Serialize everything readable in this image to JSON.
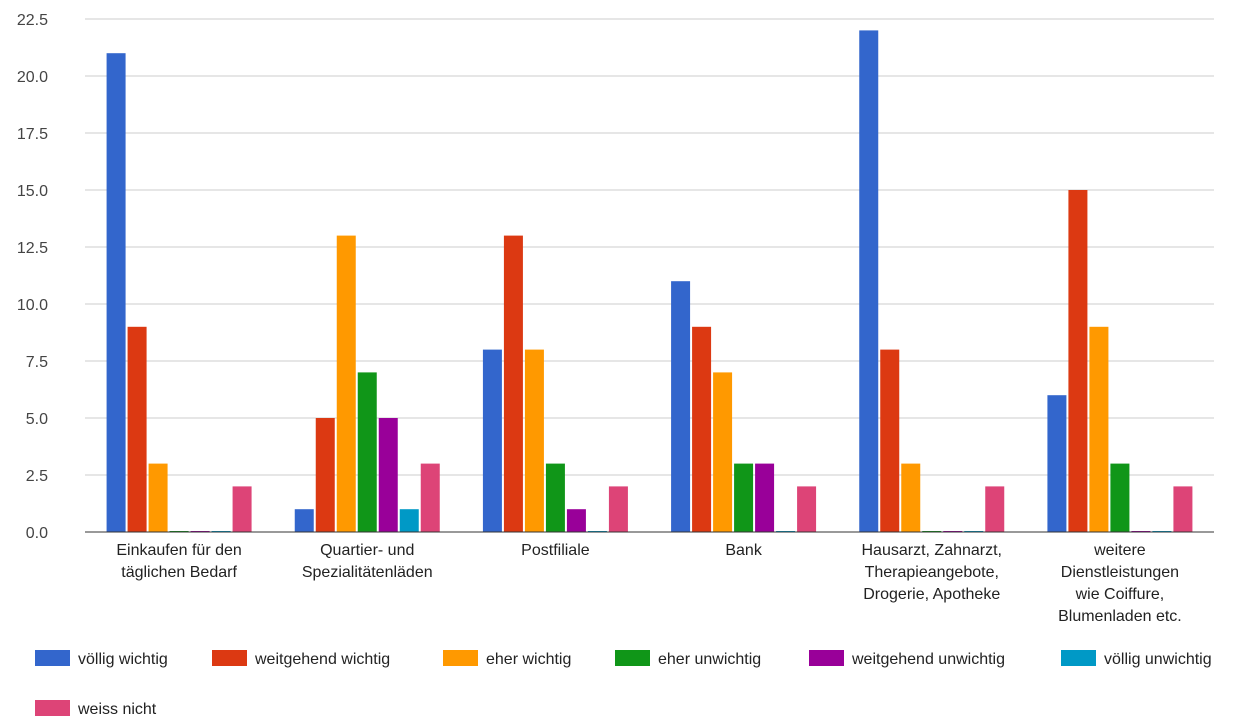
{
  "chart_data": {
    "type": "bar",
    "title": "",
    "xlabel": "",
    "ylabel": "",
    "ylim": [
      0,
      22.5
    ],
    "yticks": [
      "0.0",
      "2.5",
      "5.0",
      "7.5",
      "10.0",
      "12.5",
      "15.0",
      "17.5",
      "20.0",
      "22.5"
    ],
    "grid": true,
    "legend_position": "bottom",
    "categories": [
      [
        "Einkaufen für den",
        "täglichen Bedarf"
      ],
      [
        "Quartier- und",
        "Spezialitätenläden"
      ],
      [
        "Postfiliale"
      ],
      [
        "Bank"
      ],
      [
        "Hausarzt, Zahnarzt,",
        "Therapieangebote,",
        "Drogerie, Apotheke"
      ],
      [
        "weitere",
        "Dienstleistungen",
        "wie Coiffure,",
        "Blumenladen etc."
      ]
    ],
    "series": [
      {
        "name": "völlig wichtig",
        "color": "#3366cc",
        "values": [
          21,
          1,
          8,
          11,
          22,
          6
        ]
      },
      {
        "name": "weitgehend wichtig",
        "color": "#dc3912",
        "values": [
          9,
          5,
          13,
          9,
          8,
          15
        ]
      },
      {
        "name": "eher wichtig",
        "color": "#ff9900",
        "values": [
          3,
          13,
          8,
          7,
          3,
          9
        ]
      },
      {
        "name": "eher unwichtig",
        "color": "#109618",
        "values": [
          0,
          7,
          3,
          3,
          0,
          3
        ]
      },
      {
        "name": "weitgehend unwichtig",
        "color": "#990099",
        "values": [
          0,
          5,
          1,
          3,
          0,
          0
        ]
      },
      {
        "name": "völlig unwichtig",
        "color": "#0099c6",
        "values": [
          0,
          1,
          0,
          0,
          0,
          0
        ]
      },
      {
        "name": "weiss nicht",
        "color": "#dd4477",
        "values": [
          2,
          3,
          2,
          2,
          2,
          2
        ]
      }
    ]
  }
}
